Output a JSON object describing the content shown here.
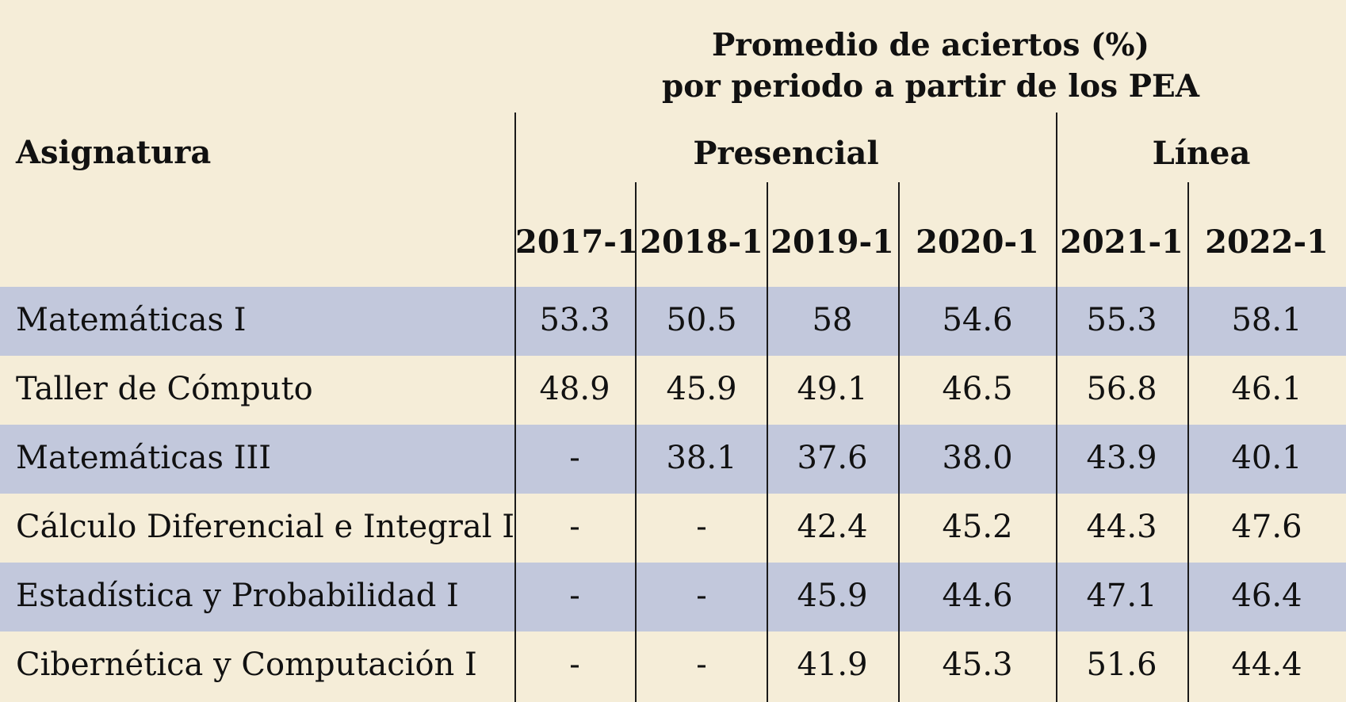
{
  "colors": {
    "background": "#f5edd8",
    "stripe": "#c2c8dc",
    "text": "#111111",
    "rule": "#1a1a1a"
  },
  "chart_data": {
    "type": "table",
    "title_line1": "Promedio de aciertos (%)",
    "title_line2": "por periodo a partir de los PEA",
    "row_header": "Asignatura",
    "groups": [
      {
        "name": "Presencial",
        "periods": [
          "2017-1",
          "2018-1",
          "2019-1",
          "2020-1"
        ]
      },
      {
        "name": "Línea",
        "periods": [
          "2021-1",
          "2022-1"
        ]
      }
    ],
    "columns": [
      "2017-1",
      "2018-1",
      "2019-1",
      "2020-1",
      "2021-1",
      "2022-1"
    ],
    "rows": [
      {
        "subject": "Matemáticas I",
        "values": [
          "53.3",
          "50.5",
          "58",
          "54.6",
          "55.3",
          "58.1"
        ]
      },
      {
        "subject": "Taller de Cómputo",
        "values": [
          "48.9",
          "45.9",
          "49.1",
          "46.5",
          "56.8",
          "46.1"
        ]
      },
      {
        "subject": "Matemáticas III",
        "values": [
          "-",
          "38.1",
          "37.6",
          "38.0",
          "43.9",
          "40.1"
        ]
      },
      {
        "subject": "Cálculo Diferencial e Integral I",
        "values": [
          "-",
          "-",
          "42.4",
          "45.2",
          "44.3",
          "47.6"
        ]
      },
      {
        "subject": "Estadística y Probabilidad I",
        "values": [
          "-",
          "-",
          "45.9",
          "44.6",
          "47.1",
          "46.4"
        ]
      },
      {
        "subject": "Cibernética y Computación I",
        "values": [
          "-",
          "-",
          "41.9",
          "45.3",
          "51.6",
          "44.4"
        ]
      }
    ],
    "striped_rows": [
      0,
      2,
      4
    ]
  }
}
